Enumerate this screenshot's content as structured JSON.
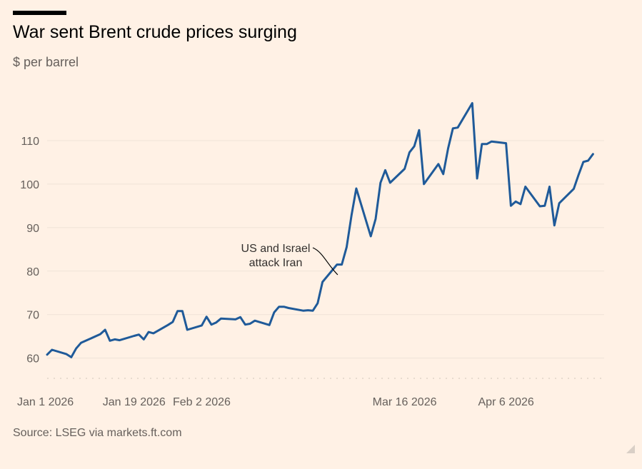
{
  "header": {
    "title": "War sent Brent crude prices surging",
    "subtitle": "$ per barrel"
  },
  "footer": {
    "source": "Source: LSEG via markets.ft.com"
  },
  "colors": {
    "background": "#fff1e5",
    "line": "#1f5a99",
    "grid": "#efe3d8",
    "text": "#66605c"
  },
  "chart_data": {
    "type": "line",
    "title": "War sent Brent crude prices surging",
    "ylabel": "$ per barrel",
    "xlabel": "",
    "ylim": [
      56,
      120
    ],
    "y_ticks": [
      60,
      70,
      80,
      90,
      100,
      110
    ],
    "grid": true,
    "x_range": [
      "2026-01-01",
      "2026-04-30"
    ],
    "x_ticks": [
      {
        "date": "2026-01-01",
        "label": "Jan 1 2026"
      },
      {
        "date": "2026-01-19",
        "label": "Jan 19 2026"
      },
      {
        "date": "2026-02-02",
        "label": "Feb 2 2026"
      },
      {
        "date": "2026-03-16",
        "label": "Mar 16 2026"
      },
      {
        "date": "2026-04-06",
        "label": "Apr 6 2026"
      }
    ],
    "annotations": [
      {
        "text_lines": [
          "US and Israel",
          "attack Iran"
        ],
        "date": "2026-03-02",
        "value": 78.5
      }
    ],
    "series": [
      {
        "points": [
          [
            "2026-01-01",
            60.8
          ],
          [
            "2026-01-02",
            61.9
          ],
          [
            "2026-01-05",
            60.9
          ],
          [
            "2026-01-06",
            60.2
          ],
          [
            "2026-01-07",
            62.2
          ],
          [
            "2026-01-08",
            63.5
          ],
          [
            "2026-01-09",
            64.0
          ],
          [
            "2026-01-12",
            65.5
          ],
          [
            "2026-01-13",
            66.5
          ],
          [
            "2026-01-14",
            64.0
          ],
          [
            "2026-01-15",
            64.3
          ],
          [
            "2026-01-16",
            64.1
          ],
          [
            "2026-01-19",
            65.1
          ],
          [
            "2026-01-20",
            65.4
          ],
          [
            "2026-01-21",
            64.3
          ],
          [
            "2026-01-22",
            66.0
          ],
          [
            "2026-01-23",
            65.7
          ],
          [
            "2026-01-26",
            67.6
          ],
          [
            "2026-01-27",
            68.3
          ],
          [
            "2026-01-28",
            70.8
          ],
          [
            "2026-01-29",
            70.8
          ],
          [
            "2026-01-30",
            66.5
          ],
          [
            "2026-02-02",
            67.5
          ],
          [
            "2026-02-03",
            69.5
          ],
          [
            "2026-02-04",
            67.7
          ],
          [
            "2026-02-05",
            68.2
          ],
          [
            "2026-02-06",
            69.1
          ],
          [
            "2026-02-09",
            68.9
          ],
          [
            "2026-02-10",
            69.4
          ],
          [
            "2026-02-11",
            67.7
          ],
          [
            "2026-02-12",
            67.9
          ],
          [
            "2026-02-13",
            68.6
          ],
          [
            "2026-02-16",
            67.6
          ],
          [
            "2026-02-17",
            70.5
          ],
          [
            "2026-02-18",
            71.8
          ],
          [
            "2026-02-19",
            71.8
          ],
          [
            "2026-02-20",
            71.5
          ],
          [
            "2026-02-23",
            70.9
          ],
          [
            "2026-02-24",
            71.0
          ],
          [
            "2026-02-25",
            70.9
          ],
          [
            "2026-02-26",
            72.6
          ],
          [
            "2026-02-27",
            77.5
          ],
          [
            "2026-03-02",
            81.5
          ],
          [
            "2026-03-03",
            81.5
          ],
          [
            "2026-03-04",
            85.5
          ],
          [
            "2026-03-05",
            92.8
          ],
          [
            "2026-03-06",
            99.0
          ],
          [
            "2026-03-09",
            88.0
          ],
          [
            "2026-03-10",
            92.0
          ],
          [
            "2026-03-11",
            100.3
          ],
          [
            "2026-03-12",
            103.2
          ],
          [
            "2026-03-13",
            100.3
          ],
          [
            "2026-03-16",
            103.5
          ],
          [
            "2026-03-17",
            107.3
          ],
          [
            "2026-03-18",
            108.7
          ],
          [
            "2026-03-19",
            112.4
          ],
          [
            "2026-03-20",
            100.0
          ],
          [
            "2026-03-23",
            104.6
          ],
          [
            "2026-03-24",
            102.3
          ],
          [
            "2026-03-25",
            108.2
          ],
          [
            "2026-03-26",
            112.8
          ],
          [
            "2026-03-27",
            113.0
          ],
          [
            "2026-03-30",
            118.6
          ],
          [
            "2026-03-31",
            101.3
          ],
          [
            "2026-04-01",
            109.2
          ],
          [
            "2026-04-02",
            109.2
          ],
          [
            "2026-04-03",
            109.8
          ],
          [
            "2026-04-06",
            109.4
          ],
          [
            "2026-04-07",
            95.0
          ],
          [
            "2026-04-08",
            96.0
          ],
          [
            "2026-04-09",
            95.4
          ],
          [
            "2026-04-10",
            99.4
          ],
          [
            "2026-04-13",
            94.9
          ],
          [
            "2026-04-14",
            95.0
          ],
          [
            "2026-04-15",
            99.4
          ],
          [
            "2026-04-16",
            90.5
          ],
          [
            "2026-04-17",
            95.6
          ],
          [
            "2026-04-20",
            98.9
          ],
          [
            "2026-04-21",
            102.1
          ],
          [
            "2026-04-22",
            105.1
          ],
          [
            "2026-04-23",
            105.4
          ],
          [
            "2026-04-24",
            106.9
          ]
        ]
      }
    ]
  }
}
